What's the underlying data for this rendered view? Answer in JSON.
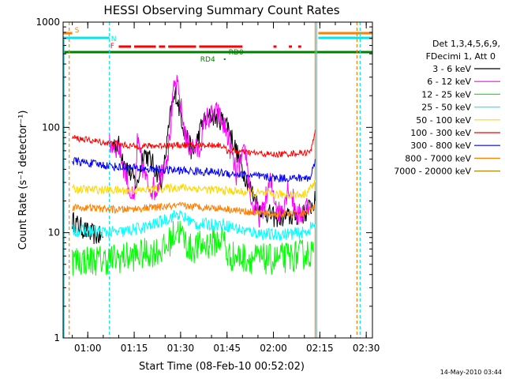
{
  "chart_data": {
    "type": "line",
    "title": "HESSI Observing Summary Count Rates",
    "xlabel": "Start Time (08-Feb-10 00:52:02)",
    "ylabel": "Count Rate (s⁻¹ detector⁻¹)",
    "yscale": "log",
    "ylim": [
      1,
      1000
    ],
    "xlim": [
      "00:52:02",
      "02:32:00"
    ],
    "x_ticks": [
      "01:00",
      "01:15",
      "01:30",
      "01:45",
      "02:00",
      "02:15",
      "02:30"
    ],
    "y_ticks": [
      "1",
      "10",
      "100",
      "1000"
    ],
    "grid": false,
    "legend_position": "right",
    "legend_header": [
      "Det 1,3,4,5,6,9,",
      "FDecimi 1, Att 0"
    ],
    "date_stamp": "14-May-2010 03:44",
    "flag_labels": {
      "saa": "S",
      "night": "N",
      "flare": "F",
      "rd0": "RD0",
      "rd4": "RD4"
    },
    "flags": [
      {
        "label": "S",
        "color": "#ff7f00",
        "segments": [
          [
            "00:52:02",
            "00:55:00"
          ],
          [
            "02:14:30",
            "02:32:00"
          ]
        ]
      },
      {
        "label": "N",
        "color": "#00e5ee",
        "segments": [
          [
            "00:52:02",
            "01:07:00"
          ],
          [
            "02:14:30",
            "02:32:00"
          ]
        ]
      },
      {
        "label": "F",
        "color": "#ff0000",
        "segments": [
          [
            "01:10:00",
            "01:14:00"
          ],
          [
            "01:15:00",
            "01:22:00"
          ],
          [
            "01:23:00",
            "01:25:00"
          ],
          [
            "01:26:00",
            "01:35:00"
          ],
          [
            "01:36:00",
            "01:50:00"
          ],
          [
            "02:00:00",
            "02:01:00"
          ],
          [
            "02:05:00",
            "02:06:00"
          ],
          [
            "02:08:00",
            "02:09:00"
          ]
        ]
      },
      {
        "label": "RD0",
        "color": "#008000",
        "segments": [
          [
            "00:52:02",
            "02:32:00"
          ]
        ]
      },
      {
        "label": "RD4",
        "color": "#008000",
        "segments": [
          [
            "01:44:00",
            "01:44:30"
          ]
        ]
      }
    ],
    "vertical_markers": [
      {
        "time": "00:54:00",
        "color": "#ff7f00",
        "style": "dashed"
      },
      {
        "time": "01:07:00",
        "color": "#00e5ee",
        "style": "dashed"
      },
      {
        "time": "02:13:30",
        "color": "#ff7f00",
        "style": "solid"
      },
      {
        "time": "02:14:00",
        "color": "#00e5ee",
        "style": "solid"
      },
      {
        "time": "02:27:00",
        "color": "#ff7f00",
        "style": "dashed"
      },
      {
        "time": "02:28:00",
        "color": "#00e5ee",
        "style": "dashed"
      }
    ],
    "series": [
      {
        "name": "3 - 6 keV",
        "color": "#000000",
        "noise": 0.1,
        "points": [
          [
            "00:55:00",
            13
          ],
          [
            "01:00:00",
            10
          ],
          [
            "01:05:00",
            9
          ],
          [
            "01:06:00",
            null
          ],
          [
            "01:08:00",
            70
          ],
          [
            "01:10:00",
            68
          ],
          [
            "01:13:00",
            40
          ],
          [
            "01:16:00",
            28
          ],
          [
            "01:18:00",
            60
          ],
          [
            "01:21:00",
            45
          ],
          [
            "01:24:00",
            30
          ],
          [
            "01:27:00",
            150
          ],
          [
            "01:28:30",
            210
          ],
          [
            "01:31:00",
            100
          ],
          [
            "01:34:00",
            55
          ],
          [
            "01:37:00",
            110
          ],
          [
            "01:40:00",
            130
          ],
          [
            "01:45:00",
            110
          ],
          [
            "01:50:00",
            40
          ],
          [
            "01:55:00",
            18
          ],
          [
            "02:00:00",
            14
          ],
          [
            "02:05:00",
            14
          ],
          [
            "02:10:00",
            15
          ],
          [
            "02:13:30",
            20
          ]
        ]
      },
      {
        "name": "6 - 12 keV",
        "color": "#ff00ff",
        "noise": 0.12,
        "points": [
          [
            "01:07:00",
            70
          ],
          [
            "01:10:00",
            65
          ],
          [
            "01:13:00",
            30
          ],
          [
            "01:15:00",
            18
          ],
          [
            "01:16:00",
            70
          ],
          [
            "01:19:00",
            30
          ],
          [
            "01:22:00",
            25
          ],
          [
            "01:26:00",
            60
          ],
          [
            "01:28:00",
            250
          ],
          [
            "01:29:00",
            240
          ],
          [
            "01:32:00",
            70
          ],
          [
            "01:36:00",
            60
          ],
          [
            "01:38:00",
            120
          ],
          [
            "01:42:00",
            135
          ],
          [
            "01:45:00",
            90
          ],
          [
            "01:48:00",
            35
          ],
          [
            "01:51:00",
            60
          ],
          [
            "01:53:00",
            18
          ],
          [
            "01:56:00",
            14
          ],
          [
            "01:59:00",
            30
          ],
          [
            "02:02:00",
            15
          ],
          [
            "02:05:00",
            28
          ],
          [
            "02:08:00",
            14
          ],
          [
            "02:12:00",
            20
          ]
        ]
      },
      {
        "name": "12 - 25 keV",
        "color": "#00ff00",
        "noise": 0.15,
        "points": [
          [
            "00:55:00",
            5.5
          ],
          [
            "01:05:00",
            5.5
          ],
          [
            "01:15:00",
            6
          ],
          [
            "01:25:00",
            7
          ],
          [
            "01:29:00",
            11
          ],
          [
            "01:33:00",
            7
          ],
          [
            "01:40:00",
            8
          ],
          [
            "01:44:00",
            9
          ],
          [
            "01:45:00",
            6
          ],
          [
            "02:00:00",
            5.5
          ],
          [
            "02:13:00",
            6.5
          ]
        ]
      },
      {
        "name": "25 - 50 keV",
        "color": "#00ffff",
        "noise": 0.06,
        "points": [
          [
            "00:55:00",
            10.5
          ],
          [
            "01:10:00",
            10
          ],
          [
            "01:20:00",
            11.5
          ],
          [
            "01:29:00",
            15
          ],
          [
            "01:35:00",
            12
          ],
          [
            "01:44:00",
            12
          ],
          [
            "01:50:00",
            10.5
          ],
          [
            "02:00:00",
            9.5
          ],
          [
            "02:10:00",
            10
          ],
          [
            "02:13:30",
            12
          ]
        ]
      },
      {
        "name": "50 - 100 keV",
        "color": "#ffd700",
        "noise": 0.04,
        "points": [
          [
            "00:55:00",
            26
          ],
          [
            "01:15:00",
            25
          ],
          [
            "01:30:00",
            27
          ],
          [
            "01:45:00",
            25
          ],
          [
            "02:00:00",
            23
          ],
          [
            "02:10:00",
            23
          ],
          [
            "02:13:30",
            30
          ]
        ]
      },
      {
        "name": "100 - 300 keV",
        "color": "#ff0000",
        "noise": 0.03,
        "points": [
          [
            "00:55:00",
            80
          ],
          [
            "01:05:00",
            72
          ],
          [
            "01:15:00",
            66
          ],
          [
            "01:30:00",
            68
          ],
          [
            "01:43:00",
            68
          ],
          [
            "01:45:00",
            60
          ],
          [
            "02:00:00",
            55
          ],
          [
            "02:12:00",
            58
          ],
          [
            "02:13:30",
            95
          ]
        ]
      },
      {
        "name": "300 - 800 keV",
        "color": "#0000ff",
        "noise": 0.04,
        "points": [
          [
            "00:55:00",
            48
          ],
          [
            "01:10:00",
            42
          ],
          [
            "01:20:00",
            40
          ],
          [
            "01:30:00",
            39
          ],
          [
            "01:44:00",
            37
          ],
          [
            "02:00:00",
            33
          ],
          [
            "02:12:00",
            33
          ],
          [
            "02:13:30",
            50
          ]
        ]
      },
      {
        "name": "800 - 7000 keV",
        "color": "#ff7f00",
        "noise": 0.035,
        "points": [
          [
            "00:55:00",
            17.5
          ],
          [
            "01:10:00",
            16.5
          ],
          [
            "01:30:00",
            18
          ],
          [
            "01:44:00",
            17
          ],
          [
            "01:50:00",
            16
          ],
          [
            "02:00:00",
            15
          ],
          [
            "02:10:00",
            15
          ],
          [
            "02:13:30",
            18
          ]
        ]
      },
      {
        "name": "7000 - 20000 keV",
        "color": "#b8860b",
        "noise": 0,
        "points": []
      }
    ]
  }
}
